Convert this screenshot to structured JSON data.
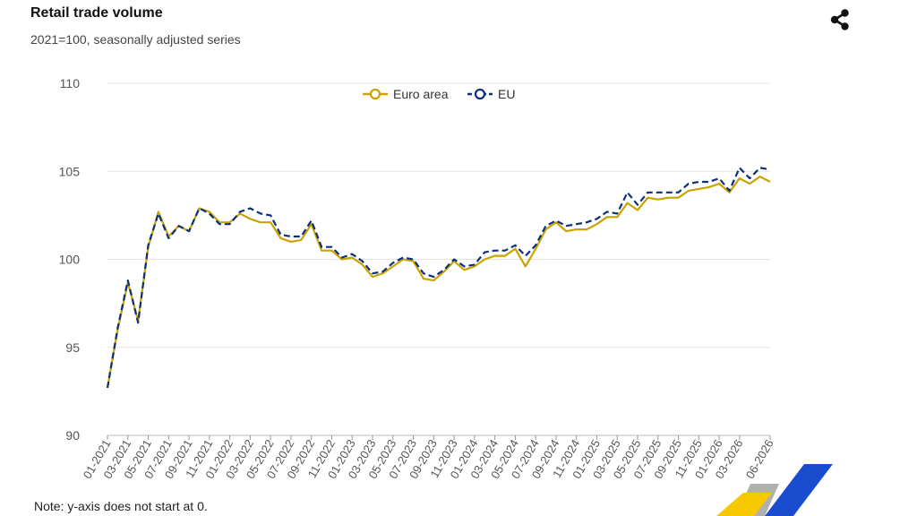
{
  "header": {
    "title": "Retail trade volume",
    "subtitle": "2021=100, seasonally adjusted series"
  },
  "note": "Note: y-axis does not start at 0.",
  "icons": {
    "share": "share-icon",
    "logo": "eurostat-logo"
  },
  "colors": {
    "euro_area": "#c9a400",
    "eu": "#0e2f7a",
    "grid": "#e3e3e3",
    "logo_yellow": "#f6c800",
    "logo_blue": "#1a4ccf",
    "logo_grey": "#b0b0b0"
  },
  "chart_data": {
    "type": "line",
    "ylim": [
      90,
      110
    ],
    "yticks": [
      90,
      95,
      100,
      105,
      110
    ],
    "grid": true,
    "legend_position": "top-center",
    "x": [
      "01-2021",
      "02-2021",
      "03-2021",
      "04-2021",
      "05-2021",
      "06-2021",
      "07-2021",
      "08-2021",
      "09-2021",
      "10-2021",
      "11-2021",
      "12-2021",
      "01-2022",
      "02-2022",
      "03-2022",
      "04-2022",
      "05-2022",
      "06-2022",
      "07-2022",
      "08-2022",
      "09-2022",
      "10-2022",
      "11-2022",
      "12-2022",
      "01-2023",
      "02-2023",
      "03-2023",
      "04-2023",
      "05-2023",
      "06-2023",
      "07-2023",
      "08-2023",
      "09-2023",
      "10-2023",
      "11-2023",
      "12-2023",
      "01-2024",
      "02-2024",
      "03-2024",
      "04-2024",
      "05-2024",
      "06-2024",
      "07-2024",
      "08-2024",
      "09-2024",
      "10-2024",
      "11-2024",
      "12-2024",
      "01-2025",
      "02-2025",
      "03-2025",
      "04-2025",
      "05-2025",
      "06-2025",
      "07-2025",
      "08-2025",
      "09-2025",
      "10-2025",
      "11-2025",
      "12-2025",
      "01-2026",
      "02-2026",
      "03-2026",
      "04-2026",
      "05-2026",
      "06-2026"
    ],
    "xtick_labels": [
      "01-2021",
      "03-2021",
      "05-2021",
      "07-2021",
      "09-2021",
      "11-2021",
      "01-2022",
      "03-2022",
      "05-2022",
      "07-2022",
      "09-2022",
      "11-2022",
      "01-2023",
      "03-2023",
      "05-2023",
      "07-2023",
      "09-2023",
      "11-2023",
      "01-2024",
      "03-2024",
      "05-2024",
      "07-2024",
      "09-2024",
      "11-2024",
      "01-2025",
      "03-2025",
      "05-2025",
      "07-2025",
      "09-2025",
      "11-2025",
      "01-2026",
      "03-2026",
      "06-2026"
    ],
    "series": [
      {
        "name": "Euro area",
        "style": "solid",
        "values": [
          92.7,
          96.0,
          98.7,
          96.5,
          100.7,
          102.7,
          101.3,
          101.9,
          101.6,
          102.9,
          102.7,
          102.1,
          102.1,
          102.6,
          102.3,
          102.1,
          102.1,
          101.2,
          101.0,
          101.1,
          102.0,
          100.5,
          100.5,
          100.0,
          100.1,
          99.7,
          99.0,
          99.2,
          99.6,
          100.0,
          99.9,
          98.9,
          98.8,
          99.3,
          99.9,
          99.4,
          99.6,
          100.0,
          100.2,
          100.2,
          100.6,
          99.6,
          100.6,
          101.7,
          102.1,
          101.6,
          101.7,
          101.7,
          102.0,
          102.4,
          102.4,
          103.2,
          102.8,
          103.5,
          103.4,
          103.5,
          103.5,
          103.9,
          104.0,
          104.1,
          104.3,
          103.8,
          104.6,
          104.3,
          104.7,
          104.4
        ]
      },
      {
        "name": "EU",
        "style": "dashed",
        "values": [
          92.7,
          96.1,
          98.8,
          96.4,
          100.8,
          102.6,
          101.2,
          101.9,
          101.6,
          102.9,
          102.6,
          102.0,
          102.0,
          102.7,
          102.9,
          102.6,
          102.5,
          101.4,
          101.3,
          101.3,
          102.2,
          100.7,
          100.7,
          100.1,
          100.3,
          99.9,
          99.2,
          99.3,
          99.8,
          100.1,
          100.0,
          99.2,
          99.0,
          99.4,
          100.0,
          99.6,
          99.7,
          100.4,
          100.5,
          100.5,
          100.8,
          100.2,
          100.8,
          101.9,
          102.2,
          101.9,
          102.0,
          102.1,
          102.3,
          102.7,
          102.6,
          103.8,
          103.1,
          103.8,
          103.8,
          103.8,
          103.8,
          104.3,
          104.4,
          104.4,
          104.6,
          103.9,
          105.2,
          104.6,
          105.2,
          105.1
        ]
      }
    ]
  }
}
